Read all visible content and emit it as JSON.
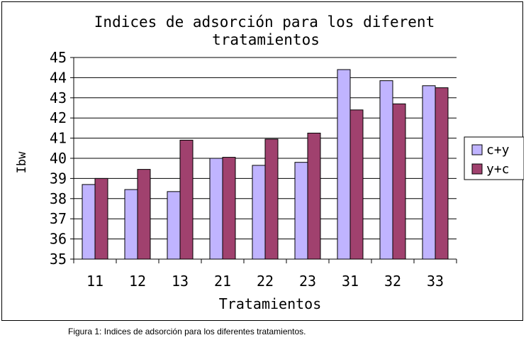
{
  "chart_data": {
    "type": "bar",
    "title_lines": [
      "Indices de adsorción para los diferent",
      "tratamientos"
    ],
    "xlabel": "Tratamientos",
    "ylabel": "Ibw",
    "categories": [
      "11",
      "12",
      "13",
      "21",
      "22",
      "23",
      "31",
      "32",
      "33"
    ],
    "ylim": [
      35,
      45
    ],
    "yticks": [
      "35",
      "36",
      "37",
      "38",
      "39",
      "40",
      "41",
      "42",
      "43",
      "44",
      "45"
    ],
    "series": [
      {
        "name": "c+y",
        "color": "#c0b4ff",
        "values": [
          38.7,
          38.45,
          38.35,
          40.0,
          39.65,
          39.8,
          44.4,
          43.85,
          43.6
        ]
      },
      {
        "name": "y+c",
        "color": "#a0416e",
        "values": [
          39.0,
          39.45,
          40.9,
          40.05,
          40.95,
          41.25,
          42.4,
          42.7,
          43.5
        ]
      }
    ],
    "grid": true,
    "legend_position": "right"
  },
  "caption": "Figura 1: Indices de adsorción para los diferentes tratamientos."
}
